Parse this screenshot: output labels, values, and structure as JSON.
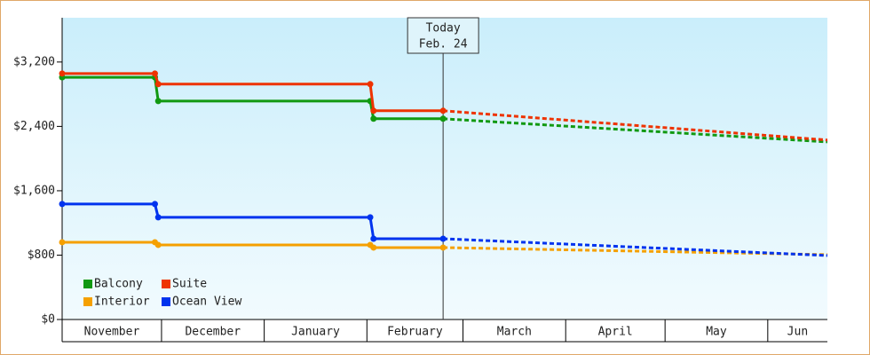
{
  "chart_data": {
    "type": "line",
    "x": [
      0,
      28,
      29,
      93,
      94,
      115,
      231
    ],
    "xlim": [
      0,
      231
    ],
    "xticks": [
      {
        "value": 0,
        "label": "November"
      },
      {
        "value": 30,
        "label": "December"
      },
      {
        "value": 61,
        "label": "January"
      },
      {
        "value": 92,
        "label": "February"
      },
      {
        "value": 121,
        "label": "March"
      },
      {
        "value": 152,
        "label": "April"
      },
      {
        "value": 182,
        "label": "May"
      },
      {
        "value": 213,
        "label": "Jun"
      }
    ],
    "ylim": [
      0,
      3750
    ],
    "yticks": [
      {
        "value": 0,
        "label": "$0"
      },
      {
        "value": 800,
        "label": "$800"
      },
      {
        "value": 1600,
        "label": "$1,600"
      },
      {
        "value": 2400,
        "label": "$2,400"
      },
      {
        "value": 3200,
        "label": "$3,200"
      }
    ],
    "annotation": {
      "x": 115,
      "lines": [
        "Today",
        "Feb. 24"
      ]
    },
    "series": [
      {
        "name": "Balcony",
        "color": "#119911",
        "values": [
          3010,
          3010,
          2715,
          2715,
          2495,
          2495,
          null
        ],
        "forecast": [
          null,
          null,
          null,
          null,
          null,
          2495,
          2207
        ]
      },
      {
        "name": "Suite",
        "color": "#ee3300",
        "values": [
          3057,
          3057,
          2925,
          2925,
          2594,
          2594,
          null
        ],
        "forecast": [
          null,
          null,
          null,
          null,
          null,
          2594,
          2230
        ]
      },
      {
        "name": "Interior",
        "color": "#f5a000",
        "values": [
          960,
          960,
          927,
          927,
          894,
          894,
          null
        ],
        "forecast": [
          null,
          null,
          null,
          null,
          null,
          894,
          806
        ]
      },
      {
        "name": "Ocean View",
        "color": "#0033ee",
        "values": [
          1435,
          1435,
          1270,
          1270,
          1004,
          1004,
          null
        ],
        "forecast": [
          null,
          null,
          null,
          null,
          null,
          1004,
          795
        ]
      }
    ],
    "legend": "lower left"
  }
}
